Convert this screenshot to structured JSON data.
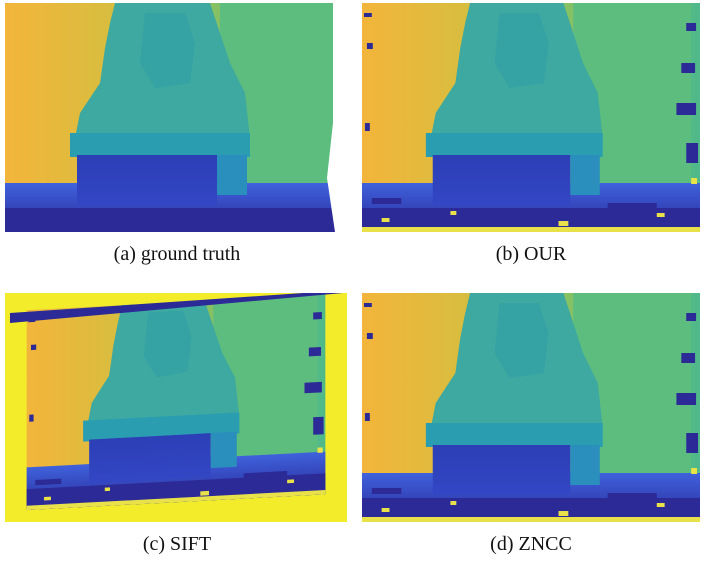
{
  "figure": {
    "subfigures": [
      {
        "caption": "(a) ground truth"
      },
      {
        "caption": "(b) OUR"
      },
      {
        "caption": "(c) SIFT"
      },
      {
        "caption": "(d) ZNCC"
      }
    ]
  }
}
